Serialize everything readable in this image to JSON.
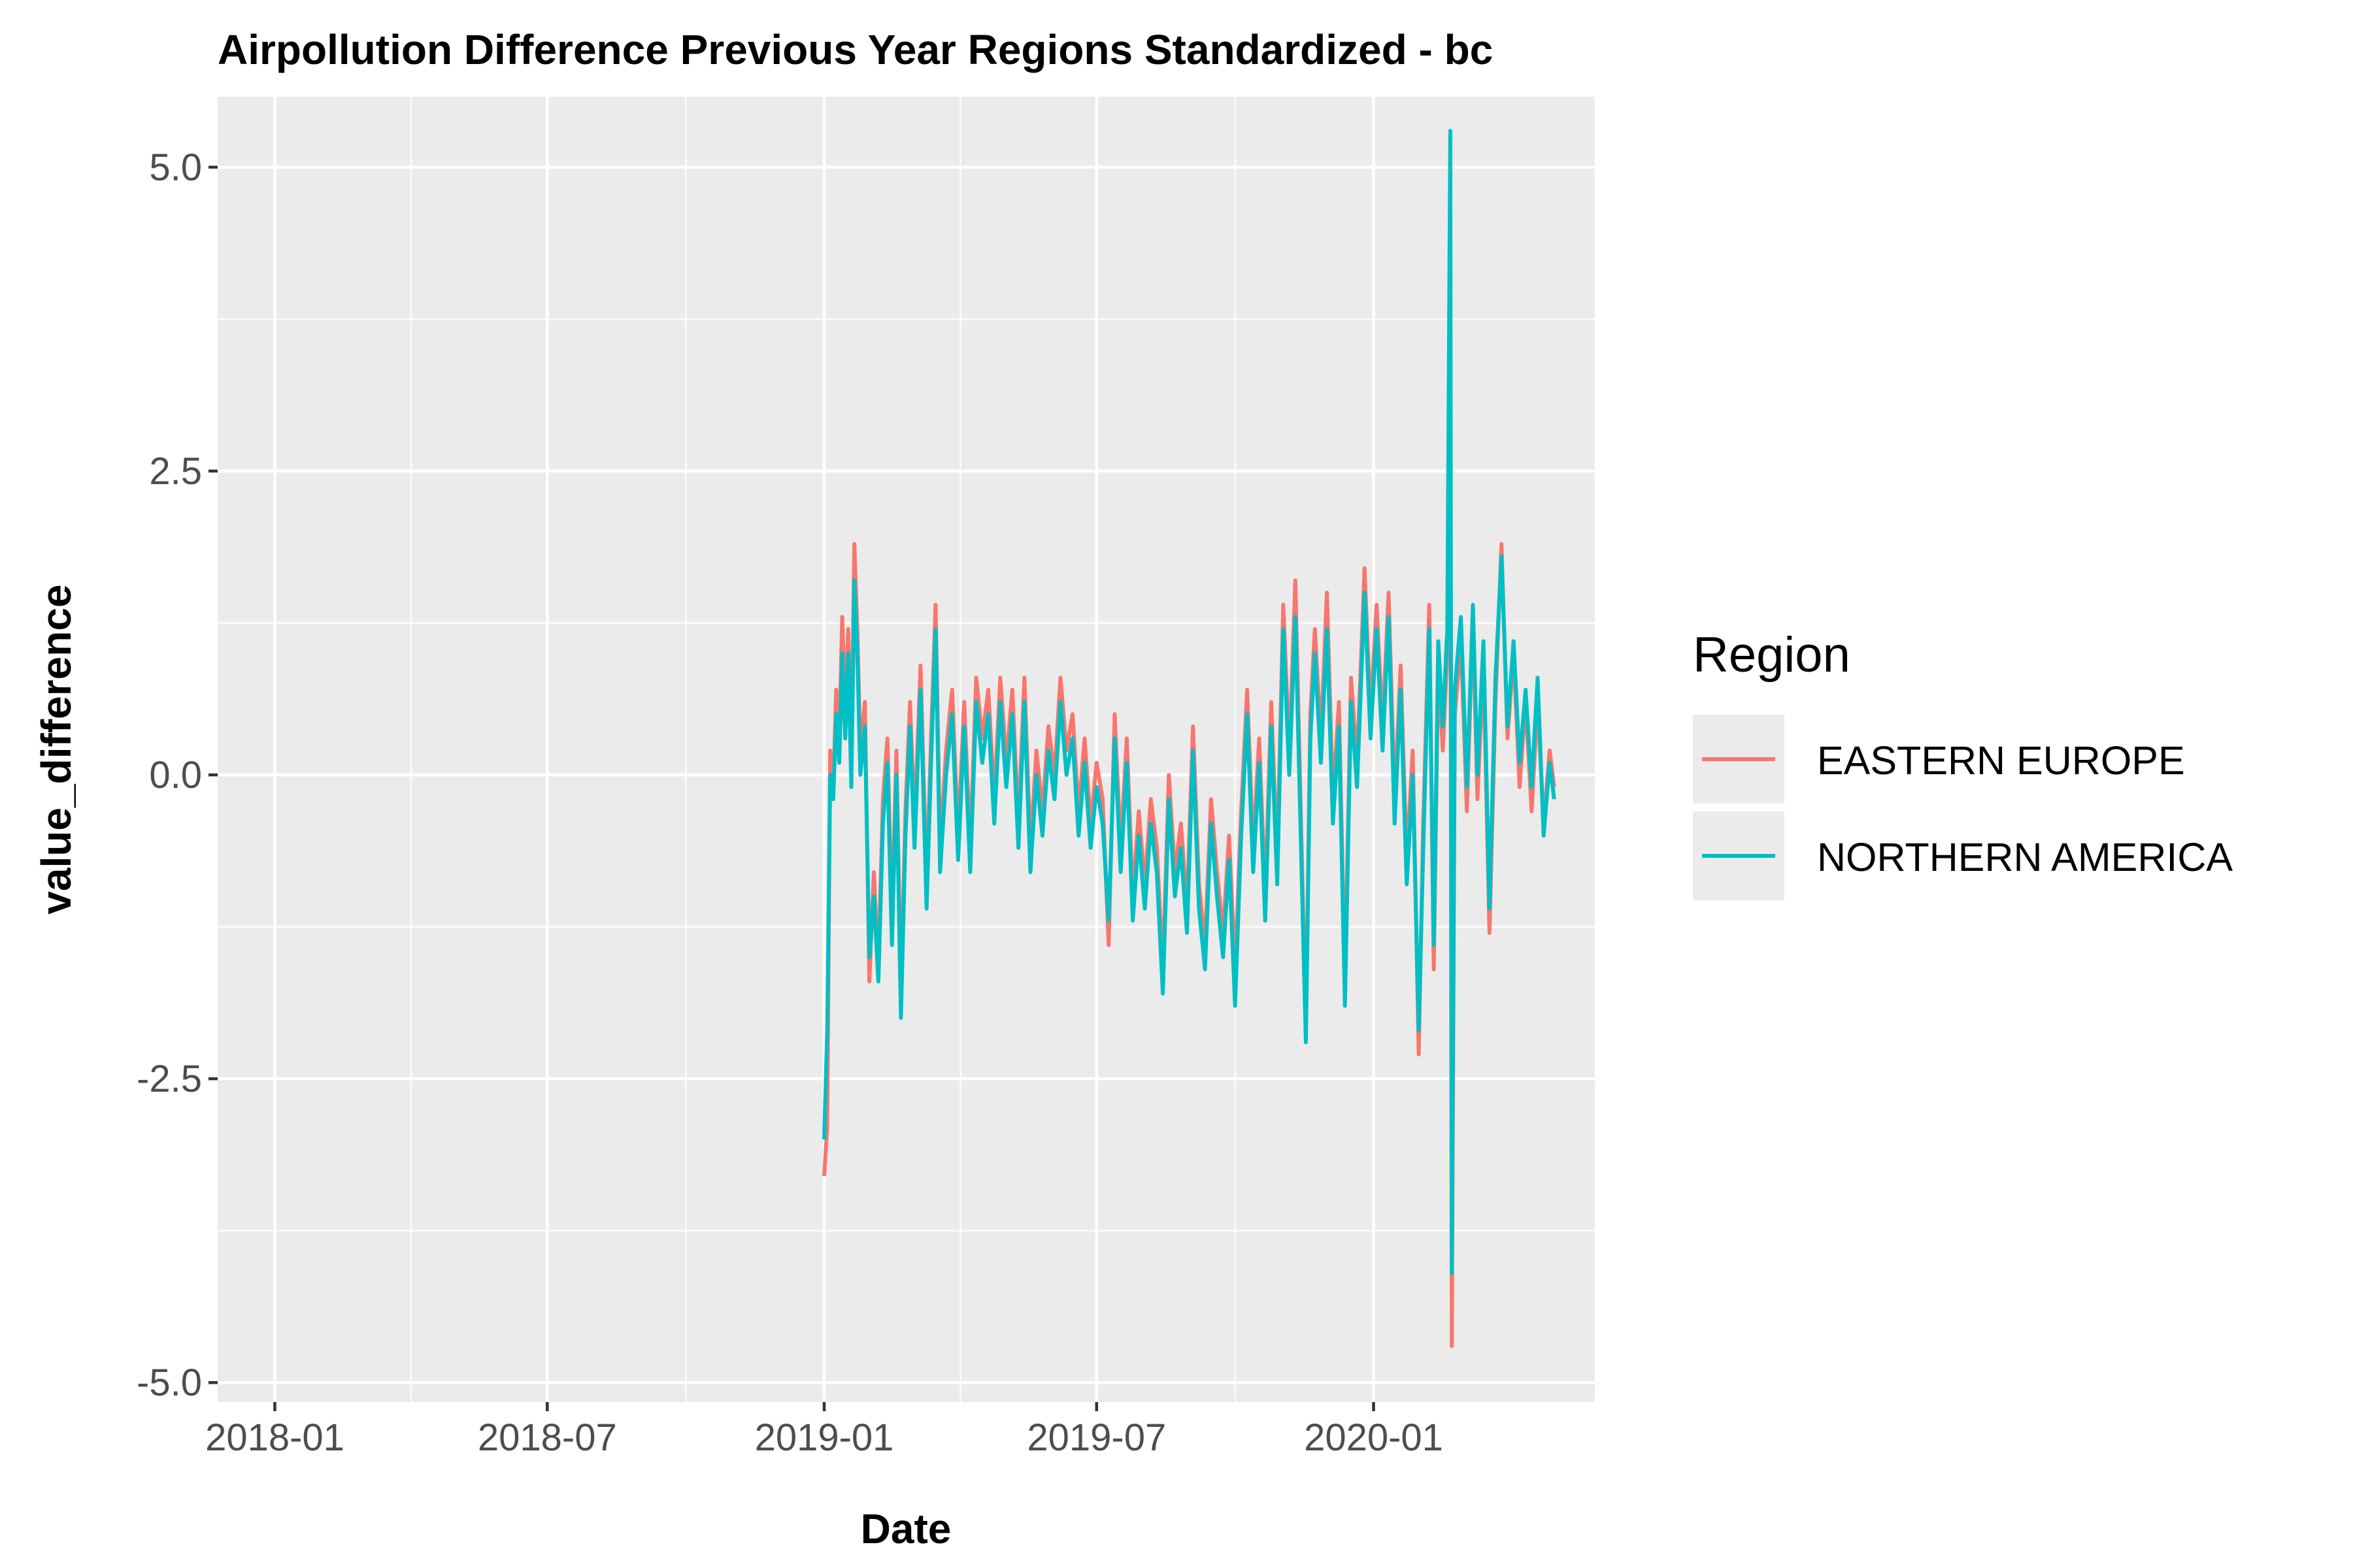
{
  "chart_data": {
    "type": "line",
    "title": "Airpollution Difference Previous Year Regions Standardized - bc",
    "xlabel": "Date",
    "ylabel": "value_difference",
    "x_ticks": [
      "2018-01",
      "2018-07",
      "2019-01",
      "2019-07",
      "2020-01"
    ],
    "x_range": [
      "2017-11-24",
      "2020-05-27"
    ],
    "y_ticks": [
      -5.0,
      -2.5,
      0.0,
      2.5,
      5.0
    ],
    "y_tick_labels": [
      "-5.0",
      "-2.5",
      "0.0",
      "2.5",
      "5.0"
    ],
    "ylim": [
      -5.16,
      5.58
    ],
    "grid": true,
    "legend": {
      "title": "Region",
      "position": "right"
    },
    "series": [
      {
        "name": "EASTERN EUROPE",
        "color": "#F8766D",
        "points": [
          [
            "2019-01-01",
            -3.3
          ],
          [
            "2019-01-03",
            -2.9
          ],
          [
            "2019-01-05",
            0.2
          ],
          [
            "2019-01-07",
            -0.1
          ],
          [
            "2019-01-09",
            0.7
          ],
          [
            "2019-01-11",
            0.3
          ],
          [
            "2019-01-13",
            1.3
          ],
          [
            "2019-01-15",
            0.5
          ],
          [
            "2019-01-17",
            1.2
          ],
          [
            "2019-01-19",
            0.1
          ],
          [
            "2019-01-21",
            1.9
          ],
          [
            "2019-01-23",
            1.2
          ],
          [
            "2019-01-25",
            0.2
          ],
          [
            "2019-01-28",
            0.6
          ],
          [
            "2019-01-31",
            -1.7
          ],
          [
            "2019-02-03",
            -0.8
          ],
          [
            "2019-02-06",
            -1.6
          ],
          [
            "2019-02-09",
            -0.2
          ],
          [
            "2019-02-12",
            0.3
          ],
          [
            "2019-02-15",
            -1.2
          ],
          [
            "2019-02-18",
            0.2
          ],
          [
            "2019-02-21",
            -1.8
          ],
          [
            "2019-02-24",
            -0.3
          ],
          [
            "2019-02-27",
            0.6
          ],
          [
            "2019-03-02",
            -0.4
          ],
          [
            "2019-03-06",
            0.9
          ],
          [
            "2019-03-10",
            -0.9
          ],
          [
            "2019-03-13",
            0.3
          ],
          [
            "2019-03-16",
            1.4
          ],
          [
            "2019-03-19",
            -0.6
          ],
          [
            "2019-03-23",
            0.2
          ],
          [
            "2019-03-27",
            0.7
          ],
          [
            "2019-03-31",
            -0.5
          ],
          [
            "2019-04-04",
            0.6
          ],
          [
            "2019-04-08",
            -0.6
          ],
          [
            "2019-04-12",
            0.8
          ],
          [
            "2019-04-16",
            0.3
          ],
          [
            "2019-04-20",
            0.7
          ],
          [
            "2019-04-24",
            -0.2
          ],
          [
            "2019-04-28",
            0.8
          ],
          [
            "2019-05-02",
            0.1
          ],
          [
            "2019-05-06",
            0.7
          ],
          [
            "2019-05-10",
            -0.4
          ],
          [
            "2019-05-14",
            0.8
          ],
          [
            "2019-05-18",
            -0.6
          ],
          [
            "2019-05-22",
            0.2
          ],
          [
            "2019-05-26",
            -0.3
          ],
          [
            "2019-05-30",
            0.4
          ],
          [
            "2019-06-03",
            0.0
          ],
          [
            "2019-06-07",
            0.8
          ],
          [
            "2019-06-11",
            0.2
          ],
          [
            "2019-06-15",
            0.5
          ],
          [
            "2019-06-19",
            -0.3
          ],
          [
            "2019-06-23",
            0.3
          ],
          [
            "2019-06-27",
            -0.4
          ],
          [
            "2019-07-01",
            0.1
          ],
          [
            "2019-07-05",
            -0.2
          ],
          [
            "2019-07-09",
            -1.4
          ],
          [
            "2019-07-13",
            0.5
          ],
          [
            "2019-07-17",
            -0.6
          ],
          [
            "2019-07-21",
            0.3
          ],
          [
            "2019-07-25",
            -1.0
          ],
          [
            "2019-07-29",
            -0.3
          ],
          [
            "2019-08-02",
            -0.9
          ],
          [
            "2019-08-06",
            -0.2
          ],
          [
            "2019-08-10",
            -0.6
          ],
          [
            "2019-08-14",
            -1.6
          ],
          [
            "2019-08-18",
            0.0
          ],
          [
            "2019-08-22",
            -0.8
          ],
          [
            "2019-08-26",
            -0.4
          ],
          [
            "2019-08-30",
            -1.1
          ],
          [
            "2019-09-03",
            0.4
          ],
          [
            "2019-09-07",
            -0.9
          ],
          [
            "2019-09-11",
            -1.4
          ],
          [
            "2019-09-15",
            -0.2
          ],
          [
            "2019-09-19",
            -0.8
          ],
          [
            "2019-09-23",
            -1.3
          ],
          [
            "2019-09-27",
            -0.5
          ],
          [
            "2019-10-01",
            -1.6
          ],
          [
            "2019-10-05",
            -0.3
          ],
          [
            "2019-10-09",
            0.7
          ],
          [
            "2019-10-13",
            -0.6
          ],
          [
            "2019-10-17",
            0.3
          ],
          [
            "2019-10-21",
            -1.0
          ],
          [
            "2019-10-25",
            0.6
          ],
          [
            "2019-10-29",
            -0.7
          ],
          [
            "2019-11-02",
            1.4
          ],
          [
            "2019-11-06",
            0.2
          ],
          [
            "2019-11-10",
            1.6
          ],
          [
            "2019-11-14",
            -0.5
          ],
          [
            "2019-11-17",
            -2.1
          ],
          [
            "2019-11-20",
            0.5
          ],
          [
            "2019-11-23",
            1.2
          ],
          [
            "2019-11-27",
            0.3
          ],
          [
            "2019-12-01",
            1.5
          ],
          [
            "2019-12-05",
            -0.2
          ],
          [
            "2019-12-09",
            0.6
          ],
          [
            "2019-12-13",
            -1.7
          ],
          [
            "2019-12-17",
            0.8
          ],
          [
            "2019-12-21",
            0.1
          ],
          [
            "2019-12-26",
            1.7
          ],
          [
            "2019-12-30",
            0.5
          ],
          [
            "2020-01-03",
            1.4
          ],
          [
            "2020-01-07",
            0.4
          ],
          [
            "2020-01-11",
            1.5
          ],
          [
            "2020-01-15",
            -0.2
          ],
          [
            "2020-01-19",
            0.9
          ],
          [
            "2020-01-23",
            -0.7
          ],
          [
            "2020-01-27",
            0.2
          ],
          [
            "2020-01-31",
            -2.3
          ],
          [
            "2020-02-03",
            -0.4
          ],
          [
            "2020-02-07",
            1.4
          ],
          [
            "2020-02-10",
            -1.6
          ],
          [
            "2020-02-13",
            0.9
          ],
          [
            "2020-02-16",
            0.2
          ],
          [
            "2020-02-19",
            1.0
          ],
          [
            "2020-02-21",
            3.0
          ],
          [
            "2020-02-22",
            -4.7
          ],
          [
            "2020-02-24",
            0.5
          ],
          [
            "2020-02-28",
            1.1
          ],
          [
            "2020-03-03",
            -0.3
          ],
          [
            "2020-03-07",
            1.3
          ],
          [
            "2020-03-10",
            -0.2
          ],
          [
            "2020-03-14",
            0.9
          ],
          [
            "2020-03-18",
            -1.3
          ],
          [
            "2020-03-22",
            0.6
          ],
          [
            "2020-03-26",
            1.9
          ],
          [
            "2020-03-30",
            0.3
          ],
          [
            "2020-04-03",
            1.0
          ],
          [
            "2020-04-07",
            -0.1
          ],
          [
            "2020-04-11",
            0.6
          ],
          [
            "2020-04-15",
            -0.3
          ],
          [
            "2020-04-19",
            0.6
          ],
          [
            "2020-04-23",
            -0.4
          ],
          [
            "2020-04-27",
            0.2
          ],
          [
            "2020-04-30",
            -0.1
          ]
        ]
      },
      {
        "name": "NORTHERN AMERICA",
        "color": "#00BFC4",
        "points": [
          [
            "2019-01-01",
            -3.0
          ],
          [
            "2019-01-03",
            -2.1
          ],
          [
            "2019-01-05",
            0.0
          ],
          [
            "2019-01-07",
            -0.2
          ],
          [
            "2019-01-09",
            0.5
          ],
          [
            "2019-01-11",
            0.1
          ],
          [
            "2019-01-13",
            1.0
          ],
          [
            "2019-01-15",
            0.3
          ],
          [
            "2019-01-17",
            1.0
          ],
          [
            "2019-01-19",
            -0.1
          ],
          [
            "2019-01-21",
            1.6
          ],
          [
            "2019-01-23",
            1.0
          ],
          [
            "2019-01-25",
            0.0
          ],
          [
            "2019-01-28",
            0.4
          ],
          [
            "2019-01-31",
            -1.5
          ],
          [
            "2019-02-03",
            -1.0
          ],
          [
            "2019-02-06",
            -1.7
          ],
          [
            "2019-02-09",
            -0.4
          ],
          [
            "2019-02-12",
            0.1
          ],
          [
            "2019-02-15",
            -1.4
          ],
          [
            "2019-02-18",
            0.0
          ],
          [
            "2019-02-21",
            -2.0
          ],
          [
            "2019-02-24",
            -0.5
          ],
          [
            "2019-02-27",
            0.4
          ],
          [
            "2019-03-02",
            -0.6
          ],
          [
            "2019-03-06",
            0.7
          ],
          [
            "2019-03-10",
            -1.1
          ],
          [
            "2019-03-13",
            0.1
          ],
          [
            "2019-03-16",
            1.2
          ],
          [
            "2019-03-19",
            -0.8
          ],
          [
            "2019-03-23",
            0.0
          ],
          [
            "2019-03-27",
            0.5
          ],
          [
            "2019-03-31",
            -0.7
          ],
          [
            "2019-04-04",
            0.4
          ],
          [
            "2019-04-08",
            -0.8
          ],
          [
            "2019-04-12",
            0.6
          ],
          [
            "2019-04-16",
            0.1
          ],
          [
            "2019-04-20",
            0.5
          ],
          [
            "2019-04-24",
            -0.4
          ],
          [
            "2019-04-28",
            0.6
          ],
          [
            "2019-05-02",
            -0.1
          ],
          [
            "2019-05-06",
            0.5
          ],
          [
            "2019-05-10",
            -0.6
          ],
          [
            "2019-05-14",
            0.6
          ],
          [
            "2019-05-18",
            -0.8
          ],
          [
            "2019-05-22",
            0.0
          ],
          [
            "2019-05-26",
            -0.5
          ],
          [
            "2019-05-30",
            0.2
          ],
          [
            "2019-06-03",
            -0.2
          ],
          [
            "2019-06-07",
            0.6
          ],
          [
            "2019-06-11",
            0.0
          ],
          [
            "2019-06-15",
            0.3
          ],
          [
            "2019-06-19",
            -0.5
          ],
          [
            "2019-06-23",
            0.1
          ],
          [
            "2019-06-27",
            -0.6
          ],
          [
            "2019-07-01",
            -0.1
          ],
          [
            "2019-07-05",
            -0.4
          ],
          [
            "2019-07-09",
            -1.2
          ],
          [
            "2019-07-13",
            0.3
          ],
          [
            "2019-07-17",
            -0.8
          ],
          [
            "2019-07-21",
            0.1
          ],
          [
            "2019-07-25",
            -1.2
          ],
          [
            "2019-07-29",
            -0.5
          ],
          [
            "2019-08-02",
            -1.1
          ],
          [
            "2019-08-06",
            -0.4
          ],
          [
            "2019-08-10",
            -0.8
          ],
          [
            "2019-08-14",
            -1.8
          ],
          [
            "2019-08-18",
            -0.2
          ],
          [
            "2019-08-22",
            -1.0
          ],
          [
            "2019-08-26",
            -0.6
          ],
          [
            "2019-08-30",
            -1.3
          ],
          [
            "2019-09-03",
            0.2
          ],
          [
            "2019-09-07",
            -1.1
          ],
          [
            "2019-09-11",
            -1.6
          ],
          [
            "2019-09-15",
            -0.4
          ],
          [
            "2019-09-19",
            -1.0
          ],
          [
            "2019-09-23",
            -1.5
          ],
          [
            "2019-09-27",
            -0.7
          ],
          [
            "2019-10-01",
            -1.9
          ],
          [
            "2019-10-05",
            -0.5
          ],
          [
            "2019-10-09",
            0.5
          ],
          [
            "2019-10-13",
            -0.8
          ],
          [
            "2019-10-17",
            0.1
          ],
          [
            "2019-10-21",
            -1.2
          ],
          [
            "2019-10-25",
            0.4
          ],
          [
            "2019-10-29",
            -0.9
          ],
          [
            "2019-11-02",
            1.2
          ],
          [
            "2019-11-06",
            0.0
          ],
          [
            "2019-11-10",
            1.3
          ],
          [
            "2019-11-14",
            -0.7
          ],
          [
            "2019-11-17",
            -2.2
          ],
          [
            "2019-11-20",
            0.3
          ],
          [
            "2019-11-23",
            1.0
          ],
          [
            "2019-11-27",
            0.1
          ],
          [
            "2019-12-01",
            1.2
          ],
          [
            "2019-12-05",
            -0.4
          ],
          [
            "2019-12-09",
            0.4
          ],
          [
            "2019-12-13",
            -1.9
          ],
          [
            "2019-12-17",
            0.6
          ],
          [
            "2019-12-21",
            -0.1
          ],
          [
            "2019-12-26",
            1.5
          ],
          [
            "2019-12-30",
            0.3
          ],
          [
            "2020-01-03",
            1.2
          ],
          [
            "2020-01-07",
            0.2
          ],
          [
            "2020-01-11",
            1.3
          ],
          [
            "2020-01-15",
            -0.4
          ],
          [
            "2020-01-19",
            0.7
          ],
          [
            "2020-01-23",
            -0.9
          ],
          [
            "2020-01-27",
            0.0
          ],
          [
            "2020-01-31",
            -2.1
          ],
          [
            "2020-02-03",
            -0.6
          ],
          [
            "2020-02-07",
            1.2
          ],
          [
            "2020-02-10",
            -1.4
          ],
          [
            "2020-02-13",
            1.1
          ],
          [
            "2020-02-16",
            0.4
          ],
          [
            "2020-02-19",
            1.2
          ],
          [
            "2020-02-21",
            5.3
          ],
          [
            "2020-02-22",
            -4.1
          ],
          [
            "2020-02-24",
            0.7
          ],
          [
            "2020-02-28",
            1.3
          ],
          [
            "2020-03-03",
            -0.1
          ],
          [
            "2020-03-07",
            1.4
          ],
          [
            "2020-03-10",
            0.0
          ],
          [
            "2020-03-14",
            1.1
          ],
          [
            "2020-03-18",
            -1.1
          ],
          [
            "2020-03-22",
            0.8
          ],
          [
            "2020-03-26",
            1.8
          ],
          [
            "2020-03-30",
            0.4
          ],
          [
            "2020-04-03",
            1.1
          ],
          [
            "2020-04-07",
            0.1
          ],
          [
            "2020-04-11",
            0.7
          ],
          [
            "2020-04-15",
            -0.1
          ],
          [
            "2020-04-19",
            0.8
          ],
          [
            "2020-04-23",
            -0.5
          ],
          [
            "2020-04-27",
            0.1
          ],
          [
            "2020-04-30",
            -0.2
          ]
        ]
      }
    ]
  }
}
